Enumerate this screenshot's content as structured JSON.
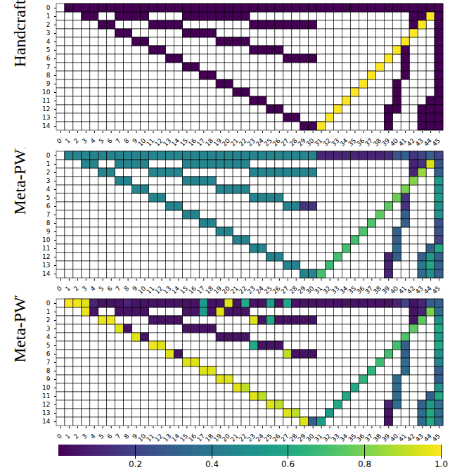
{
  "chart_data": {
    "type": "heatmap",
    "x_categories": [
      0,
      1,
      2,
      3,
      4,
      5,
      6,
      7,
      8,
      9,
      10,
      11,
      12,
      13,
      14,
      15,
      16,
      17,
      18,
      19,
      20,
      21,
      22,
      23,
      24,
      25,
      26,
      27,
      28,
      29,
      30,
      31,
      32,
      33,
      34,
      35,
      36,
      37,
      38,
      39,
      40,
      41,
      42,
      43,
      44,
      45
    ],
    "y_categories": [
      0,
      1,
      2,
      3,
      4,
      5,
      6,
      7,
      8,
      9,
      10,
      11,
      12,
      13,
      14
    ],
    "cell_columns": [
      [
        1,
        2,
        3,
        4,
        5,
        6,
        7,
        8,
        9,
        10,
        11,
        12,
        13,
        14,
        15,
        16,
        17,
        18,
        19,
        20,
        21,
        22,
        23,
        24,
        25,
        26,
        27,
        28,
        29,
        30,
        31,
        32,
        33,
        34,
        35,
        36,
        37,
        38,
        39,
        40,
        41,
        42,
        43,
        44,
        45
      ],
      [
        3,
        4,
        7,
        8,
        9,
        10,
        15,
        16,
        17,
        18,
        19,
        20,
        21,
        22,
        42,
        43,
        44,
        45
      ],
      [
        5,
        6,
        11,
        12,
        13,
        14,
        23,
        24,
        25,
        26,
        27,
        28,
        29,
        30,
        42,
        43,
        45
      ],
      [
        7,
        8,
        15,
        16,
        17,
        18,
        42,
        45
      ],
      [
        9,
        10,
        19,
        20,
        21,
        22,
        41,
        45
      ],
      [
        11,
        12,
        23,
        24,
        25,
        26,
        40,
        41,
        45
      ],
      [
        13,
        14,
        27,
        28,
        29,
        30,
        39,
        41,
        45
      ],
      [
        15,
        16,
        38,
        41,
        45
      ],
      [
        17,
        18,
        37,
        41,
        45
      ],
      [
        19,
        20,
        36,
        40,
        45
      ],
      [
        21,
        22,
        35,
        40,
        45
      ],
      [
        23,
        24,
        34,
        40,
        44,
        45
      ],
      [
        25,
        26,
        33,
        39,
        40,
        43,
        44,
        45
      ],
      [
        27,
        28,
        32,
        39,
        43,
        44,
        45
      ],
      [
        29,
        30,
        31,
        39,
        43,
        44,
        45
      ]
    ],
    "panels": [
      {
        "title": "Handcrafted",
        "values": [
          [
            0,
            0,
            0,
            0,
            0,
            0,
            0,
            0,
            0,
            0,
            0,
            0,
            0,
            0,
            0,
            0,
            0,
            0,
            0,
            0,
            0,
            0,
            0,
            0,
            0,
            0,
            0,
            0,
            0,
            0,
            0,
            0,
            0,
            0,
            0,
            0,
            0,
            0,
            0,
            0,
            0,
            0,
            0,
            0,
            0
          ],
          [
            0,
            0,
            0,
            0,
            0,
            0,
            0,
            0,
            0,
            0,
            0,
            0,
            0,
            0,
            0,
            0,
            1,
            0
          ],
          [
            0,
            0,
            0,
            0,
            0,
            0,
            0,
            0,
            0,
            0,
            0,
            0,
            0,
            0,
            0,
            1,
            0
          ],
          [
            0,
            0,
            0,
            0,
            0,
            0,
            1,
            0
          ],
          [
            0,
            0,
            0,
            0,
            0,
            0,
            1,
            0
          ],
          [
            0,
            0,
            0,
            0,
            0,
            0,
            1,
            0,
            0
          ],
          [
            0,
            0,
            0,
            0,
            0,
            0,
            1,
            0,
            0
          ],
          [
            0,
            0,
            1,
            0,
            0
          ],
          [
            0,
            0,
            1,
            0,
            0
          ],
          [
            0,
            0,
            1,
            0,
            0
          ],
          [
            0,
            0,
            1,
            0,
            0
          ],
          [
            0,
            0,
            1,
            0,
            0,
            0
          ],
          [
            0,
            0,
            1,
            0,
            0,
            0,
            0,
            0
          ],
          [
            0,
            0,
            1,
            0,
            0,
            0,
            0
          ],
          [
            0,
            0,
            1,
            0,
            0,
            0,
            0
          ]
        ]
      },
      {
        "title": "Meta-PWR",
        "values": [
          [
            0.45,
            0.45,
            0.45,
            0.45,
            0.45,
            0.45,
            0.45,
            0.45,
            0.45,
            0.45,
            0.45,
            0.45,
            0.45,
            0.45,
            0.45,
            0.45,
            0.45,
            0.45,
            0.45,
            0.45,
            0.45,
            0.45,
            0.45,
            0.45,
            0.45,
            0.45,
            0.45,
            0.45,
            0.45,
            0.45,
            0.1,
            0.1,
            0.1,
            0.1,
            0.1,
            0.1,
            0.1,
            0.1,
            0.12,
            0.25,
            0.3,
            0.15,
            0.2,
            0.3,
            0.2
          ],
          [
            0.45,
            0.45,
            0.45,
            0.45,
            0.45,
            0.45,
            0.45,
            0.45,
            0.45,
            0.45,
            0.45,
            0.45,
            0.45,
            0.45,
            0.1,
            0.15,
            0.95,
            0.25
          ],
          [
            0.45,
            0.45,
            0.45,
            0.45,
            0.45,
            0.45,
            0.45,
            0.45,
            0.45,
            0.45,
            0.45,
            0.45,
            0.45,
            0.45,
            0.1,
            0.85,
            0.3
          ],
          [
            0.45,
            0.45,
            0.45,
            0.45,
            0.45,
            0.45,
            0.82,
            0.55
          ],
          [
            0.45,
            0.45,
            0.45,
            0.45,
            0.45,
            0.45,
            0.8,
            0.5
          ],
          [
            0.45,
            0.45,
            0.45,
            0.45,
            0.45,
            0.45,
            0.78,
            0.15,
            0.55
          ],
          [
            0.45,
            0.45,
            0.45,
            0.45,
            0.15,
            0.15,
            0.75,
            0.15,
            0.5
          ],
          [
            0.45,
            0.45,
            0.75,
            0.3,
            0.5
          ],
          [
            0.45,
            0.45,
            0.72,
            0.3,
            0.25
          ],
          [
            0.45,
            0.45,
            0.72,
            0.3,
            0.25
          ],
          [
            0.45,
            0.45,
            0.7,
            0.3,
            0.2
          ],
          [
            0.45,
            0.45,
            0.7,
            0.35,
            0.3,
            0.6
          ],
          [
            0.45,
            0.45,
            0.7,
            0.1,
            0.3,
            0.3,
            0.55,
            0.3
          ],
          [
            0.45,
            0.45,
            0.68,
            0.1,
            0.4,
            0.6,
            0.3
          ],
          [
            0.45,
            0.45,
            0.7,
            0.1,
            0.35,
            0.5,
            0.3
          ]
        ]
      },
      {
        "title": "Meta-PWTD",
        "values": [
          [
            1.0,
            0.98,
            0.95,
            0.1,
            0.05,
            0.05,
            0.05,
            0.1,
            0.05,
            0.05,
            0.05,
            0.05,
            0.05,
            0.05,
            0.05,
            0.05,
            0.55,
            0.05,
            0.05,
            0.95,
            0.05,
            0.6,
            0.05,
            0.05,
            0.55,
            0.05,
            0.6,
            0.05,
            0.05,
            0.05,
            0.05,
            0.05,
            0.05,
            0.05,
            0.05,
            0.05,
            0.05,
            0.05,
            0.05,
            0.1,
            0.2,
            0.05,
            0.1,
            0.3,
            0.3
          ],
          [
            0.97,
            0.05,
            0.05,
            0.05,
            0.05,
            0.05,
            0.05,
            0.05,
            0.55,
            0.05,
            0.95,
            0.05,
            0.05,
            0.05,
            0.05,
            0.1,
            0.8,
            0.35
          ],
          [
            0.97,
            0.98,
            0.05,
            0.05,
            0.05,
            0.05,
            0.95,
            0.05,
            0.6,
            0.05,
            0.05,
            0.05,
            0.05,
            0.05,
            0.05,
            0.75,
            0.5
          ],
          [
            0.95,
            0.05,
            0.05,
            0.05,
            0.05,
            0.05,
            0.75,
            0.6
          ],
          [
            0.95,
            0.05,
            0.05,
            0.05,
            0.05,
            0.05,
            0.72,
            0.55
          ],
          [
            0.98,
            0.95,
            0.6,
            0.05,
            0.05,
            0.05,
            0.7,
            0.3,
            0.6
          ],
          [
            0.95,
            0.05,
            0.9,
            0.05,
            0.05,
            0.05,
            0.7,
            0.3,
            0.5
          ],
          [
            0.95,
            0.95,
            0.68,
            0.35,
            0.45
          ],
          [
            0.95,
            0.95,
            0.65,
            0.35,
            0.3
          ],
          [
            0.95,
            0.95,
            0.65,
            0.35,
            0.3
          ],
          [
            0.95,
            0.9,
            0.6,
            0.35,
            0.5
          ],
          [
            0.95,
            0.9,
            0.6,
            0.35,
            0.3,
            0.6
          ],
          [
            0.95,
            0.9,
            0.6,
            0.1,
            0.35,
            0.3,
            0.55,
            0.35
          ],
          [
            0.95,
            0.9,
            0.55,
            0.05,
            0.35,
            0.6,
            0.35
          ],
          [
            0.95,
            0.3,
            0.55,
            0.05,
            0.35,
            0.6,
            0.35
          ]
        ]
      }
    ],
    "colorbar": {
      "range": [
        0,
        1
      ],
      "ticks": [
        0.2,
        0.4,
        0.6,
        0.8,
        {
          "value": 1,
          "label": "1.0"
        }
      ]
    }
  }
}
